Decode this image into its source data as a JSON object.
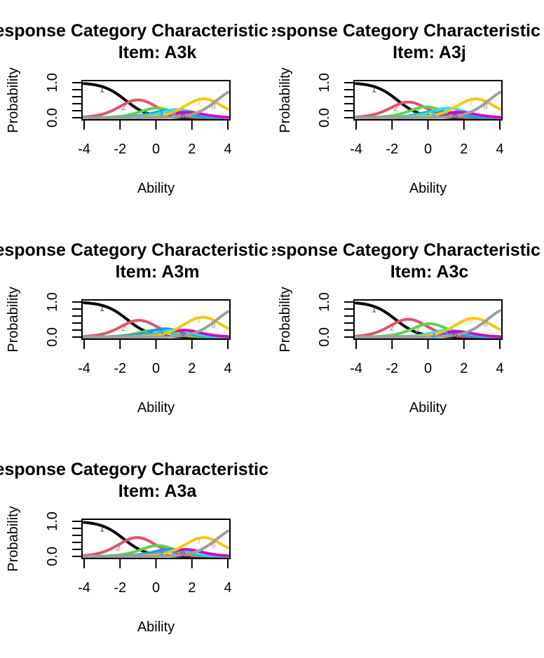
{
  "figure": {
    "background": "#ffffff"
  },
  "chart_data": [
    {
      "type": "line",
      "title": "Response Category Characteristic Curves",
      "subtitle": "Item: A3k",
      "xlabel": "Ability",
      "ylabel": "Probability",
      "xlim": [
        -4,
        4
      ],
      "ylim": [
        0,
        1
      ],
      "xticks": [
        "-4",
        "-2",
        "0",
        "2",
        "4"
      ],
      "yticks": [
        "0.0",
        "1.0"
      ],
      "grid": false,
      "legend": "none",
      "a": 1.6,
      "thresholds": [
        -1.7,
        -0.3,
        0.4,
        0.9,
        1.5,
        1.9,
        3.4
      ],
      "categories": [
        "1",
        "2",
        "3",
        "4",
        "5",
        "6",
        "7",
        "8"
      ],
      "label_x": [
        -3.0,
        -1.8,
        -0.6,
        0.3,
        1.0,
        1.5,
        2.4,
        3.2
      ],
      "colors": [
        "#000000",
        "#DF536B",
        "#61D04F",
        "#2297E6",
        "#28E2E5",
        "#CD0BBC",
        "#F5C710",
        "#9E9E9E"
      ]
    },
    {
      "type": "line",
      "title": "Response Category Characteristic Curves",
      "subtitle": "Item: A3j",
      "xlabel": "Ability",
      "ylabel": "Probability",
      "xlim": [
        -4,
        4
      ],
      "ylim": [
        0,
        1
      ],
      "xticks": [
        "-4",
        "-2",
        "0",
        "2",
        "4"
      ],
      "yticks": [
        "0.0",
        "1.0"
      ],
      "grid": false,
      "legend": "none",
      "a": 1.6,
      "thresholds": [
        -1.7,
        -0.5,
        0.3,
        0.8,
        1.5,
        1.9,
        3.4
      ],
      "categories": [
        "1",
        "2",
        "3",
        "4",
        "5",
        "6",
        "7",
        "8"
      ],
      "label_x": [
        -3.0,
        -1.8,
        -0.6,
        0.3,
        1.0,
        1.5,
        2.4,
        3.2
      ],
      "colors": [
        "#000000",
        "#DF536B",
        "#61D04F",
        "#2297E6",
        "#28E2E5",
        "#CD0BBC",
        "#F5C710",
        "#9E9E9E"
      ]
    },
    {
      "type": "line",
      "title": "Response Category Characteristic Curves",
      "subtitle": "Item: A3m",
      "xlabel": "Ability",
      "ylabel": "Probability",
      "xlim": [
        -4,
        4
      ],
      "ylim": [
        0,
        1
      ],
      "xticks": [
        "-4",
        "-2",
        "0",
        "2",
        "4"
      ],
      "yticks": [
        "0.0",
        "1.0"
      ],
      "grid": false,
      "legend": "none",
      "a": 1.6,
      "thresholds": [
        -1.6,
        -0.3,
        0.2,
        0.8,
        1.3,
        1.8,
        3.4
      ],
      "categories": [
        "1",
        "2",
        "3",
        "4",
        "5",
        "6",
        "7",
        "8"
      ],
      "label_x": [
        -3.0,
        -1.8,
        -0.6,
        0.3,
        1.0,
        1.5,
        2.4,
        3.2
      ],
      "colors": [
        "#000000",
        "#DF536B",
        "#61D04F",
        "#2297E6",
        "#28E2E5",
        "#CD0BBC",
        "#F5C710",
        "#9E9E9E"
      ]
    },
    {
      "type": "line",
      "title": "Response Category Characteristic Curves",
      "subtitle": "Item: A3c",
      "xlabel": "Ability",
      "ylabel": "Probability",
      "xlim": [
        -4,
        4
      ],
      "ylim": [
        0,
        1
      ],
      "xticks": [
        "-4",
        "-2",
        "0",
        "2",
        "4"
      ],
      "yticks": [
        "0.0",
        "1.0"
      ],
      "grid": false,
      "legend": "none",
      "a": 1.6,
      "thresholds": [
        -1.8,
        -0.4,
        0.6,
        0.9,
        1.4,
        1.8,
        3.3
      ],
      "categories": [
        "1",
        "2",
        "3",
        "4",
        "5",
        "6",
        "7",
        "8"
      ],
      "label_x": [
        -3.0,
        -2.0,
        -0.6,
        0.3,
        1.0,
        1.5,
        2.4,
        3.2
      ],
      "colors": [
        "#000000",
        "#DF536B",
        "#61D04F",
        "#2297E6",
        "#28E2E5",
        "#CD0BBC",
        "#F5C710",
        "#9E9E9E"
      ]
    },
    {
      "type": "line",
      "title": "Response Category Characteristic Curves",
      "subtitle": "Item: A3a",
      "xlabel": "Ability",
      "ylabel": "Probability",
      "xlim": [
        -4,
        4
      ],
      "ylim": [
        0,
        1
      ],
      "xticks": [
        "-4",
        "-2",
        "0",
        "2",
        "4"
      ],
      "yticks": [
        "0.0",
        "1.0"
      ],
      "grid": false,
      "legend": "none",
      "a": 1.6,
      "thresholds": [
        -1.8,
        -0.3,
        0.5,
        1.0,
        1.4,
        1.9,
        3.4
      ],
      "categories": [
        "1",
        "2",
        "3",
        "4",
        "5",
        "6",
        "7",
        "8"
      ],
      "label_x": [
        -3.0,
        -2.1,
        -0.6,
        0.3,
        1.0,
        1.5,
        2.4,
        3.2
      ],
      "colors": [
        "#000000",
        "#DF536B",
        "#61D04F",
        "#2297E6",
        "#28E2E5",
        "#CD0BBC",
        "#F5C710",
        "#9E9E9E"
      ]
    }
  ]
}
